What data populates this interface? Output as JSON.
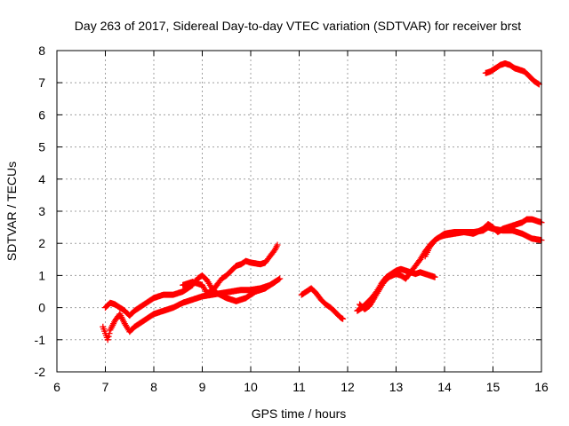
{
  "chart_data": {
    "type": "scatter",
    "title": "Day 263 of 2017, Sidereal Day-to-day VTEC variation (SDTVAR) for receiver brst",
    "xlabel": "GPS time / hours",
    "ylabel": "SDTVAR / TECUs",
    "xlim": [
      6,
      16
    ],
    "ylim": [
      -2,
      8
    ],
    "x_ticks": [
      6,
      7,
      8,
      9,
      10,
      11,
      12,
      13,
      14,
      15,
      16
    ],
    "y_ticks": [
      -2,
      -1,
      0,
      1,
      2,
      3,
      4,
      5,
      6,
      7,
      8
    ],
    "grid": true,
    "marker": "+",
    "series": [
      {
        "name": "track-1",
        "color": "#ff0000",
        "points": [
          [
            6.95,
            -0.6
          ],
          [
            7.0,
            -0.8
          ],
          [
            7.05,
            -1.0
          ],
          [
            7.1,
            -0.7
          ],
          [
            7.2,
            -0.4
          ],
          [
            7.3,
            -0.2
          ],
          [
            7.4,
            -0.5
          ],
          [
            7.5,
            -0.75
          ],
          [
            7.6,
            -0.6
          ],
          [
            7.8,
            -0.4
          ],
          [
            8.0,
            -0.2
          ],
          [
            8.2,
            -0.1
          ],
          [
            8.4,
            0.0
          ],
          [
            8.6,
            0.15
          ],
          [
            8.8,
            0.25
          ],
          [
            9.0,
            0.35
          ],
          [
            9.2,
            0.4
          ],
          [
            9.4,
            0.45
          ],
          [
            9.6,
            0.5
          ],
          [
            9.8,
            0.55
          ],
          [
            10.0,
            0.55
          ],
          [
            10.2,
            0.6
          ],
          [
            10.4,
            0.7
          ],
          [
            10.5,
            0.8
          ],
          [
            10.6,
            0.9
          ]
        ]
      },
      {
        "name": "track-2",
        "color": "#ff0000",
        "points": [
          [
            7.0,
            0.0
          ],
          [
            7.1,
            0.15
          ],
          [
            7.2,
            0.1
          ],
          [
            7.3,
            0.0
          ],
          [
            7.4,
            -0.1
          ],
          [
            7.5,
            -0.25
          ],
          [
            7.6,
            -0.1
          ],
          [
            7.8,
            0.1
          ],
          [
            8.0,
            0.3
          ],
          [
            8.2,
            0.4
          ],
          [
            8.4,
            0.4
          ],
          [
            8.6,
            0.5
          ],
          [
            8.8,
            0.7
          ],
          [
            8.9,
            0.9
          ],
          [
            9.0,
            1.0
          ],
          [
            9.1,
            0.85
          ],
          [
            9.2,
            0.6
          ],
          [
            9.3,
            0.45
          ],
          [
            9.5,
            0.3
          ],
          [
            9.7,
            0.2
          ],
          [
            9.9,
            0.3
          ],
          [
            10.1,
            0.5
          ],
          [
            10.3,
            0.6
          ],
          [
            10.4,
            0.7
          ],
          [
            10.5,
            0.8
          ]
        ]
      },
      {
        "name": "track-3",
        "color": "#ff0000",
        "points": [
          [
            8.6,
            0.7
          ],
          [
            8.8,
            0.8
          ],
          [
            9.0,
            0.7
          ],
          [
            9.1,
            0.45
          ],
          [
            9.2,
            0.5
          ],
          [
            9.3,
            0.7
          ],
          [
            9.4,
            0.9
          ],
          [
            9.5,
            1.0
          ],
          [
            9.6,
            1.15
          ],
          [
            9.7,
            1.3
          ],
          [
            9.8,
            1.35
          ],
          [
            9.9,
            1.45
          ],
          [
            10.0,
            1.4
          ],
          [
            10.2,
            1.35
          ],
          [
            10.3,
            1.4
          ],
          [
            10.4,
            1.6
          ],
          [
            10.5,
            1.8
          ],
          [
            10.55,
            1.95
          ]
        ]
      },
      {
        "name": "track-4",
        "color": "#ff0000",
        "points": [
          [
            11.05,
            0.4
          ],
          [
            11.15,
            0.5
          ],
          [
            11.25,
            0.6
          ],
          [
            11.35,
            0.45
          ],
          [
            11.45,
            0.25
          ],
          [
            11.55,
            0.1
          ],
          [
            11.65,
            0.0
          ],
          [
            11.75,
            -0.15
          ],
          [
            11.85,
            -0.3
          ],
          [
            11.9,
            -0.35
          ]
        ]
      },
      {
        "name": "track-5",
        "color": "#ff0000",
        "points": [
          [
            12.2,
            -0.1
          ],
          [
            12.3,
            0.0
          ],
          [
            12.4,
            0.15
          ],
          [
            12.5,
            0.3
          ],
          [
            12.6,
            0.5
          ],
          [
            12.7,
            0.75
          ],
          [
            12.8,
            0.95
          ],
          [
            12.9,
            1.05
          ],
          [
            13.0,
            1.15
          ],
          [
            13.1,
            1.2
          ],
          [
            13.2,
            1.15
          ],
          [
            13.3,
            1.1
          ],
          [
            13.4,
            1.05
          ],
          [
            13.5,
            1.1
          ],
          [
            13.6,
            1.05
          ],
          [
            13.7,
            1.0
          ],
          [
            13.8,
            0.95
          ]
        ]
      },
      {
        "name": "track-6",
        "color": "#ff0000",
        "points": [
          [
            12.25,
            0.1
          ],
          [
            12.35,
            -0.05
          ],
          [
            12.45,
            0.05
          ],
          [
            12.55,
            0.3
          ],
          [
            12.65,
            0.55
          ],
          [
            12.75,
            0.8
          ],
          [
            12.85,
            0.95
          ],
          [
            13.0,
            1.05
          ],
          [
            13.1,
            1.0
          ],
          [
            13.2,
            0.9
          ],
          [
            13.3,
            1.1
          ],
          [
            13.4,
            1.3
          ],
          [
            13.5,
            1.5
          ],
          [
            13.6,
            1.75
          ],
          [
            13.7,
            1.95
          ],
          [
            13.8,
            2.1
          ],
          [
            13.9,
            2.2
          ],
          [
            14.0,
            2.25
          ],
          [
            14.2,
            2.3
          ],
          [
            14.4,
            2.35
          ],
          [
            14.6,
            2.35
          ],
          [
            14.8,
            2.4
          ],
          [
            14.9,
            2.5
          ],
          [
            15.0,
            2.45
          ],
          [
            15.2,
            2.4
          ],
          [
            15.4,
            2.4
          ],
          [
            15.6,
            2.3
          ],
          [
            15.8,
            2.15
          ],
          [
            16.0,
            2.1
          ]
        ]
      },
      {
        "name": "track-7",
        "color": "#ff0000",
        "points": [
          [
            13.6,
            1.6
          ],
          [
            13.7,
            1.9
          ],
          [
            13.8,
            2.1
          ],
          [
            13.9,
            2.2
          ],
          [
            14.0,
            2.3
          ],
          [
            14.2,
            2.35
          ],
          [
            14.4,
            2.35
          ],
          [
            14.6,
            2.3
          ],
          [
            14.8,
            2.45
          ],
          [
            14.9,
            2.6
          ],
          [
            15.0,
            2.5
          ],
          [
            15.1,
            2.35
          ],
          [
            15.2,
            2.45
          ],
          [
            15.3,
            2.5
          ],
          [
            15.4,
            2.55
          ],
          [
            15.5,
            2.6
          ],
          [
            15.6,
            2.65
          ],
          [
            15.7,
            2.75
          ],
          [
            15.8,
            2.75
          ],
          [
            15.9,
            2.7
          ],
          [
            16.0,
            2.65
          ]
        ]
      },
      {
        "name": "track-8",
        "color": "#ff0000",
        "points": [
          [
            14.85,
            7.3
          ],
          [
            14.95,
            7.35
          ],
          [
            15.05,
            7.45
          ],
          [
            15.15,
            7.55
          ],
          [
            15.25,
            7.6
          ],
          [
            15.35,
            7.55
          ],
          [
            15.45,
            7.45
          ],
          [
            15.55,
            7.4
          ],
          [
            15.65,
            7.35
          ],
          [
            15.75,
            7.2
          ],
          [
            15.85,
            7.05
          ],
          [
            15.95,
            6.95
          ]
        ]
      }
    ]
  }
}
